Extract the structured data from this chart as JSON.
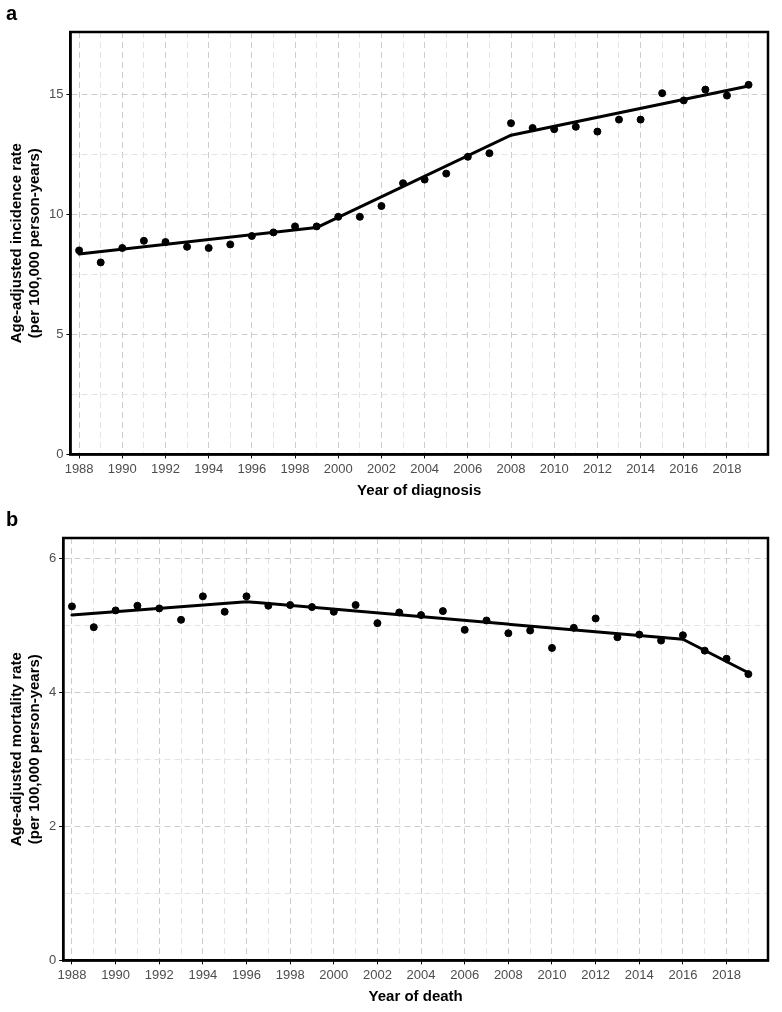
{
  "chart_data": [
    {
      "type": "scatter",
      "title": "a",
      "xlabel": "Year of diagnosis",
      "ylabel": "Age-adjusted incidence rate\n(per 100,000 person-years)",
      "grid": true,
      "xlim": [
        1987.6,
        2019.9
      ],
      "ylim": [
        0,
        17.6
      ],
      "xticks": [
        1988,
        {
          "value": 1989,
          "label": null
        },
        1990,
        {
          "value": 1991,
          "label": null
        },
        1992,
        {
          "value": 1993,
          "label": null
        },
        1994,
        {
          "value": 1995,
          "label": null
        },
        1996,
        {
          "value": 1997,
          "label": null
        },
        1998,
        {
          "value": 1999,
          "label": null
        },
        2000,
        {
          "value": 2001,
          "label": null
        },
        2002,
        {
          "value": 2003,
          "label": null
        },
        2004,
        {
          "value": 2005,
          "label": null
        },
        2006,
        {
          "value": 2007,
          "label": null
        },
        2008,
        {
          "value": 2009,
          "label": null
        },
        2010,
        {
          "value": 2011,
          "label": null
        },
        2012,
        {
          "value": 2013,
          "label": null
        },
        2014,
        {
          "value": 2015,
          "label": null
        },
        2016,
        {
          "value": 2017,
          "label": null
        },
        2018,
        {
          "value": 2019,
          "label": null
        }
      ],
      "yticks": [
        0,
        {
          "value": 2.5,
          "label": null
        },
        5,
        {
          "value": 7.5,
          "label": null
        },
        10,
        {
          "value": 12.5,
          "label": null
        },
        15
      ],
      "x": [
        1988,
        1989,
        1990,
        1991,
        1992,
        1993,
        1994,
        1995,
        1996,
        1997,
        1998,
        1999,
        2000,
        2001,
        2002,
        2003,
        2004,
        2005,
        2006,
        2007,
        2008,
        2009,
        2010,
        2011,
        2012,
        2013,
        2014,
        2015,
        2016,
        2017,
        2018,
        2019
      ],
      "series": [
        {
          "marker": "circle",
          "color": "#000000",
          "values": [
            8.5,
            8.0,
            8.6,
            8.9,
            8.85,
            8.65,
            8.6,
            8.75,
            9.1,
            9.25,
            9.5,
            9.5,
            9.9,
            9.9,
            10.35,
            11.3,
            11.45,
            11.7,
            12.4,
            12.55,
            13.8,
            13.6,
            13.55,
            13.65,
            13.45,
            13.95,
            13.95,
            15.05,
            14.75,
            15.2,
            14.95,
            15.4
          ]
        },
        {
          "type": "line",
          "color": "#000000",
          "x": [
            1988,
            1999,
            2008,
            2019
          ],
          "values": [
            8.35,
            9.45,
            13.3,
            15.35
          ]
        }
      ]
    },
    {
      "type": "scatter",
      "title": "b",
      "xlabel": "Year of death",
      "ylabel": "Age-adjusted mortality rate\n(per 100,000 person-years)",
      "grid": true,
      "xlim": [
        1987.6,
        2019.9
      ],
      "ylim": [
        0,
        6.3
      ],
      "xticks": [
        1988,
        {
          "value": 1989,
          "label": null
        },
        1990,
        {
          "value": 1991,
          "label": null
        },
        1992,
        {
          "value": 1993,
          "label": null
        },
        1994,
        {
          "value": 1995,
          "label": null
        },
        1996,
        {
          "value": 1997,
          "label": null
        },
        1998,
        {
          "value": 1999,
          "label": null
        },
        2000,
        {
          "value": 2001,
          "label": null
        },
        2002,
        {
          "value": 2003,
          "label": null
        },
        2004,
        {
          "value": 2005,
          "label": null
        },
        2006,
        {
          "value": 2007,
          "label": null
        },
        2008,
        {
          "value": 2009,
          "label": null
        },
        2010,
        {
          "value": 2011,
          "label": null
        },
        2012,
        {
          "value": 2013,
          "label": null
        },
        2014,
        {
          "value": 2015,
          "label": null
        },
        2016,
        {
          "value": 2017,
          "label": null
        },
        2018,
        {
          "value": 2019,
          "label": null
        }
      ],
      "yticks": [
        0,
        {
          "value": 1,
          "label": null
        },
        2,
        {
          "value": 3,
          "label": null
        },
        4,
        {
          "value": 5,
          "label": null
        },
        6
      ],
      "x": [
        1988,
        1989,
        1990,
        1991,
        1992,
        1993,
        1994,
        1995,
        1996,
        1997,
        1998,
        1999,
        2000,
        2001,
        2002,
        2003,
        2004,
        2005,
        2006,
        2007,
        2008,
        2009,
        2010,
        2011,
        2012,
        2013,
        2014,
        2015,
        2016,
        2017,
        2018,
        2019
      ],
      "series": [
        {
          "marker": "circle",
          "color": "#000000",
          "values": [
            5.28,
            4.97,
            5.22,
            5.29,
            5.25,
            5.08,
            5.43,
            5.2,
            5.43,
            5.29,
            5.3,
            5.27,
            5.2,
            5.3,
            5.03,
            5.19,
            5.15,
            5.21,
            4.93,
            5.07,
            4.88,
            4.92,
            4.66,
            4.96,
            5.1,
            4.82,
            4.86,
            4.77,
            4.85,
            4.62,
            4.5,
            4.27
          ]
        },
        {
          "type": "line",
          "color": "#000000",
          "x": [
            1988,
            1996,
            2016,
            2019
          ],
          "values": [
            5.15,
            5.35,
            4.79,
            4.29
          ]
        }
      ]
    }
  ]
}
